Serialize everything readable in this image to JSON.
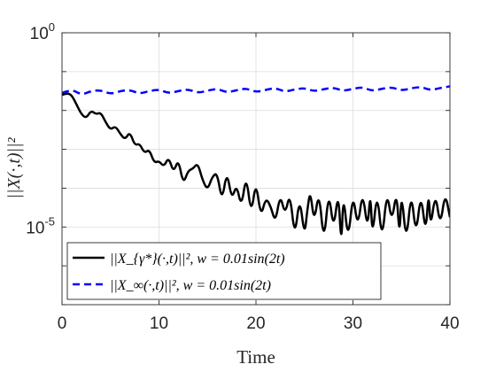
{
  "chart_data": {
    "type": "line",
    "title": "",
    "xlabel": "Time",
    "ylabel": "||X(·,t)||²",
    "xlim": [
      0,
      40
    ],
    "ylim_log10": [
      -7,
      0
    ],
    "yscale": "log",
    "grid": true,
    "legend_placement": "bottom-left",
    "x_ticks": [
      0,
      10,
      20,
      30,
      40
    ],
    "x_tick_labels": [
      "0",
      "10",
      "20",
      "30",
      "40"
    ],
    "y_tick_labels": [
      {
        "base": "10",
        "exp": "0",
        "log10": 0
      },
      {
        "base": "10",
        "exp": "-5",
        "log10": -5
      }
    ],
    "series": [
      {
        "name": "||X_{γ*}(·,t)||², w = 0.01sin(2t)",
        "color": "#000000",
        "style": "solid",
        "x": [
          0,
          0.5,
          1,
          1.5,
          2,
          2.5,
          3,
          3.5,
          4,
          4.5,
          5,
          5.5,
          6,
          6.5,
          7,
          7.5,
          8,
          8.5,
          9,
          9.5,
          10,
          10.5,
          11,
          11.5,
          12,
          12.5,
          13,
          13.5,
          14,
          14.5,
          15,
          15.5,
          16,
          16.5,
          17,
          17.5,
          18,
          18.5,
          19,
          19.5,
          20,
          20.5,
          21,
          21.5,
          22,
          22.5,
          23,
          23.5,
          24,
          24.5,
          25,
          25.3,
          25.6,
          26,
          26.5,
          27,
          27.5,
          28,
          28.5,
          28.8,
          29,
          29.5,
          30,
          30.5,
          31,
          31.5,
          31.8,
          32,
          32.5,
          33,
          33.5,
          34,
          34.5,
          34.8,
          35,
          35.5,
          36,
          36.5,
          37,
          37.5,
          37.8,
          38,
          38.5,
          39,
          39.5,
          40
        ],
        "y_log10": [
          -1.6,
          -1.55,
          -1.6,
          -1.85,
          -2.1,
          -2.2,
          -2.0,
          -2.1,
          -2.05,
          -2.3,
          -2.5,
          -2.4,
          -2.6,
          -2.75,
          -2.55,
          -2.9,
          -2.85,
          -3.1,
          -3.0,
          -3.35,
          -3.3,
          -3.45,
          -3.2,
          -3.6,
          -3.25,
          -3.9,
          -3.55,
          -3.5,
          -3.35,
          -3.8,
          -4.05,
          -3.7,
          -3.6,
          -4.35,
          -3.55,
          -4.3,
          -3.9,
          -4.5,
          -3.65,
          -4.7,
          -3.8,
          -4.75,
          -4.25,
          -4.45,
          -4.9,
          -4.15,
          -4.7,
          -4.1,
          -5.3,
          -4.2,
          -5.25,
          -4.55,
          -4.05,
          -4.9,
          -4.05,
          -5.45,
          -4.05,
          -5.1,
          -4.05,
          -5.55,
          -4.1,
          -5.4,
          -4.1,
          -5.05,
          -4.05,
          -5.1,
          -4.05,
          -5.3,
          -4.05,
          -5.4,
          -4.05,
          -4.9,
          -4.05,
          -5.3,
          -4.05,
          -5.45,
          -4.05,
          -5.25,
          -4.1,
          -5.2,
          -4.05,
          -5.05,
          -4.1,
          -5.0,
          -4.1,
          -4.75
        ],
        "oscillating_tail": true
      },
      {
        "name": "||X_∞(·,t)||², w = 0.01sin(2t)",
        "color": "#0000ff",
        "style": "dashed",
        "x": [
          0,
          1,
          2,
          3,
          4,
          5,
          6,
          7,
          8,
          9,
          10,
          11,
          12,
          13,
          14,
          15,
          16,
          17,
          18,
          19,
          20,
          21,
          22,
          23,
          24,
          25,
          26,
          27,
          28,
          29,
          30,
          31,
          32,
          33,
          34,
          35,
          36,
          37,
          38,
          39,
          40
        ],
        "y_log10": [
          -1.55,
          -1.45,
          -1.6,
          -1.5,
          -1.48,
          -1.58,
          -1.5,
          -1.47,
          -1.57,
          -1.5,
          -1.46,
          -1.56,
          -1.5,
          -1.45,
          -1.55,
          -1.49,
          -1.44,
          -1.54,
          -1.48,
          -1.43,
          -1.53,
          -1.47,
          -1.42,
          -1.52,
          -1.46,
          -1.42,
          -1.51,
          -1.45,
          -1.41,
          -1.5,
          -1.44,
          -1.4,
          -1.5,
          -1.44,
          -1.4,
          -1.49,
          -1.43,
          -1.39,
          -1.48,
          -1.42,
          -1.38
        ],
        "oscillating_tail": false
      }
    ]
  }
}
